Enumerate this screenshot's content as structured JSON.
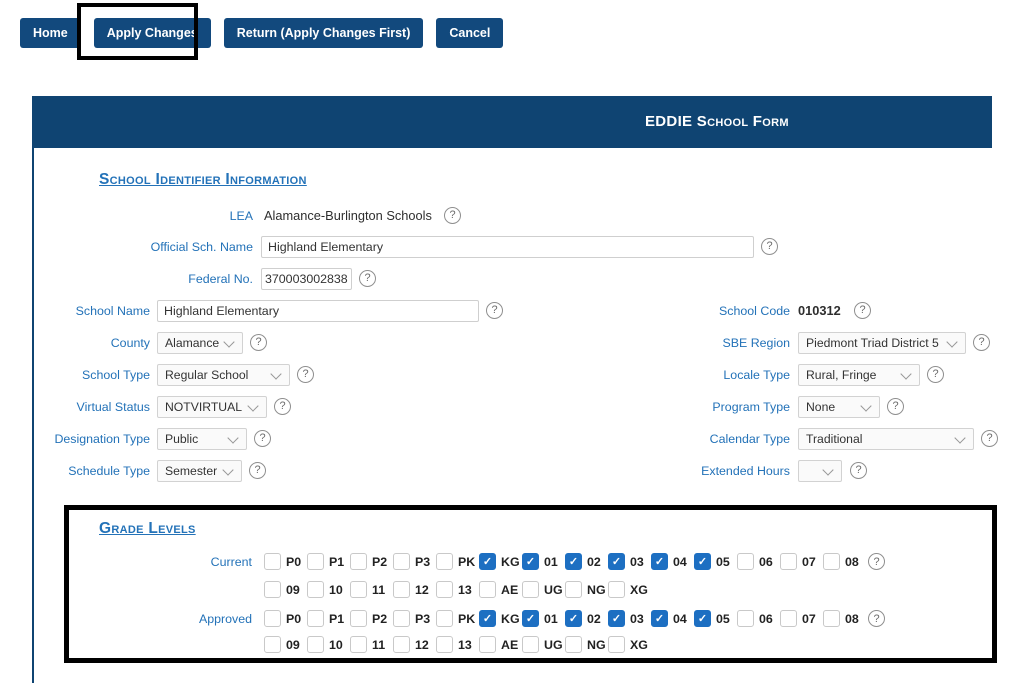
{
  "toolbar": {
    "home": "Home",
    "apply_changes": "Apply Changes",
    "return": "Return (Apply Changes First)",
    "cancel": "Cancel"
  },
  "form": {
    "title": "EDDIE School Form"
  },
  "identifier_section": {
    "heading": "School Identifier Information",
    "lea_label": "LEA",
    "lea_value": "Alamance-Burlington Schools",
    "official_name_label": "Official Sch. Name",
    "official_name_value": "Highland Elementary",
    "federal_no_label": "Federal No.",
    "federal_no_value": "370003002838",
    "school_name_label": "School Name",
    "school_name_value": "Highland Elementary",
    "school_code_label": "School Code",
    "school_code_value": "010312",
    "county_label": "County",
    "county_value": "Alamance",
    "sbe_region_label": "SBE Region",
    "sbe_region_value": "Piedmont Triad District 5",
    "school_type_label": "School Type",
    "school_type_value": "Regular School",
    "locale_type_label": "Locale Type",
    "locale_type_value": "Rural, Fringe",
    "virtual_status_label": "Virtual Status",
    "virtual_status_value": "NOTVIRTUAL",
    "program_type_label": "Program Type",
    "program_type_value": "None",
    "designation_type_label": "Designation Type",
    "designation_type_value": "Public",
    "calendar_type_label": "Calendar Type",
    "calendar_type_value": "Traditional",
    "schedule_type_label": "Schedule Type",
    "schedule_type_value": "Semester",
    "extended_hours_label": "Extended Hours",
    "extended_hours_value": ""
  },
  "grade_levels": {
    "heading": "Grade Levels",
    "row1_grades": [
      "P0",
      "P1",
      "P2",
      "P3",
      "PK",
      "KG",
      "01",
      "02",
      "03",
      "04",
      "05",
      "06",
      "07",
      "08"
    ],
    "row2_grades": [
      "09",
      "10",
      "11",
      "12",
      "13",
      "AE",
      "UG",
      "NG",
      "XG"
    ],
    "groups": [
      {
        "label": "Current",
        "checked": [
          "KG",
          "01",
          "02",
          "03",
          "04",
          "05"
        ]
      },
      {
        "label": "Approved",
        "checked": [
          "KG",
          "01",
          "02",
          "03",
          "04",
          "05"
        ]
      }
    ]
  },
  "icons": {
    "help": "?",
    "check": "✓"
  },
  "colors": {
    "navy": "#0f4472",
    "button_navy": "#12497d",
    "label_blue": "#2372b8",
    "checkbox_checked": "#1d6fc2",
    "annotation": "#000000"
  }
}
